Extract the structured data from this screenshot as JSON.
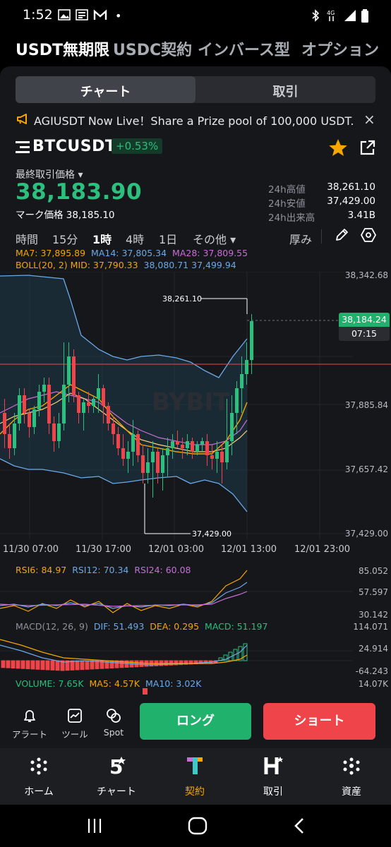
{
  "status": {
    "time": "1:52",
    "dot": "•"
  },
  "product_tabs": [
    "USDT無期限",
    "USDC契約",
    "インバース型",
    "オプション"
  ],
  "segment": {
    "chart": "チャート",
    "trade": "取引"
  },
  "announcement": {
    "text": "AGIUSDT Now Live！Share a Prize pool of 100,000 USDT."
  },
  "symbol": {
    "pair": "BTCUSDT",
    "change": "+0.53%"
  },
  "price": {
    "last_label": "最終取引価格 ▾",
    "last": "38,183.90",
    "mark_label": "マーク価格",
    "mark": "38,185.10"
  },
  "stats": [
    {
      "label": "24h高値",
      "value": "38,261.10"
    },
    {
      "label": "24h安値",
      "value": "37,429.00"
    },
    {
      "label": "24h出来高",
      "value": "3.41B"
    }
  ],
  "timeframes": {
    "time": "時間",
    "m15": "15分",
    "h1": "1時",
    "h4": "4時",
    "d1": "1日",
    "more": "その他 ▾",
    "depth": "厚み"
  },
  "indicators": {
    "ma7": "MA7: 37,895.89",
    "ma14": "MA14: 37,805.34",
    "ma28": "MA28: 37,809.55",
    "boll": "BOLL(20, 2) MID: 37,790.33",
    "boll_up": "38,080.71",
    "boll_dn": "37,499.94",
    "rsi6": "RSI6: 84.97",
    "rsi12": "RSI12: 70.34",
    "rsi24": "RSI24: 60.08",
    "macd_lbl": "MACD(12, 26, 9)",
    "dif": "DIF: 51.493",
    "dea": "DEA: 0.295",
    "macd": "MACD: 51.197",
    "volume": "VOLUME: 7.65K",
    "ma5": "MA5: 4.57K",
    "ma10": "MA10: 3.02K"
  },
  "y_axis": [
    "38,342.68",
    "37,885.84",
    "37,657.42",
    "37,429.00"
  ],
  "current_price_tag": {
    "price": "38,184.24",
    "countdown": "07:15"
  },
  "hi_marker": "38,261.10",
  "lo_marker": "37,429.00",
  "x_axis": [
    "11/30 07:00",
    "11/30 17:00",
    "12/01 03:00",
    "12/01 13:00",
    "12/01 23:00"
  ],
  "rsi_axis": [
    "85.052",
    "57.597",
    "30.142"
  ],
  "macd_axis": [
    "114.071",
    "24.914",
    "-64.243"
  ],
  "vol_axis": "14.07K",
  "watermark": "BYBIT",
  "actions": {
    "alert": "アラート",
    "tool": "ツール",
    "spot": "Spot",
    "long": "ロング",
    "short": "ショート"
  },
  "nav": [
    {
      "label": "ホーム"
    },
    {
      "label": "チャート"
    },
    {
      "label": "契約"
    },
    {
      "label": "取引"
    },
    {
      "label": "資産"
    }
  ],
  "colors": {
    "up": "#2cc07e",
    "down": "#ef454a",
    "accent": "#f7a600"
  }
}
